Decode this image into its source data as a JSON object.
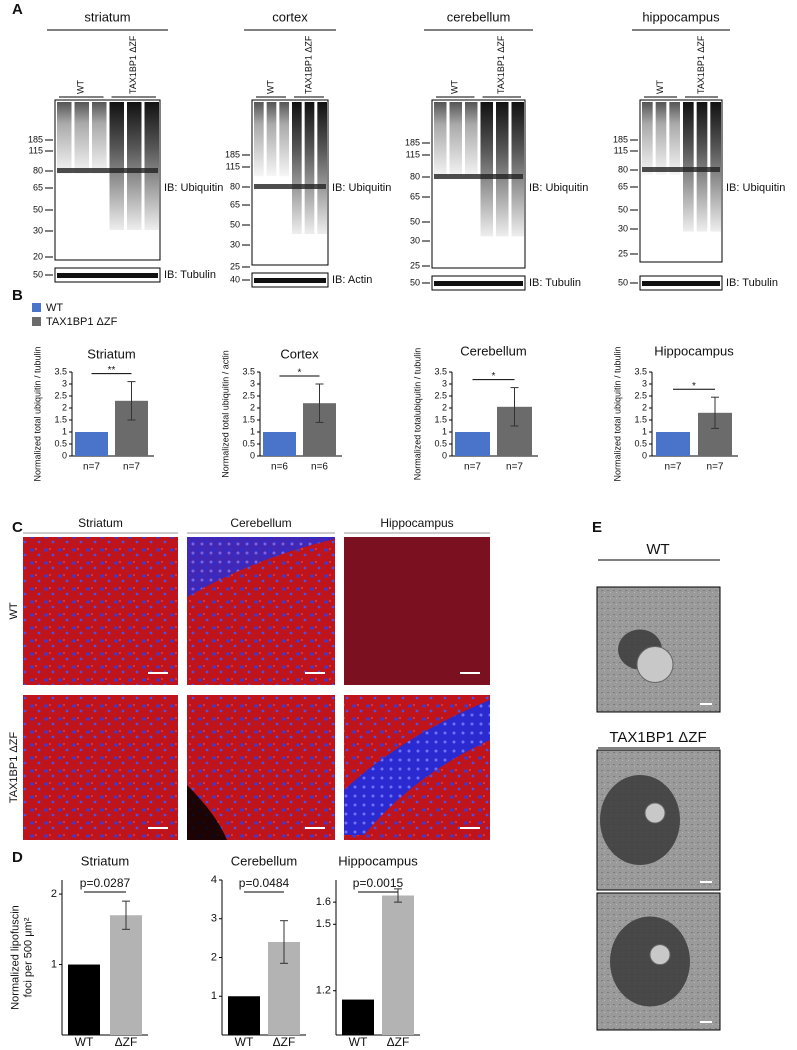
{
  "panel_labels": [
    "A",
    "B",
    "C",
    "D",
    "E"
  ],
  "blots": [
    {
      "tissue": "striatum",
      "lanes": [
        "WT",
        "TAX1BP1 ΔZF"
      ],
      "mw": [
        "185",
        "115",
        "80",
        "65",
        "50",
        "30",
        "20"
      ],
      "ib": "IB: Ubiquitin",
      "loading_mw": "50",
      "loading_ib": "IB: Tubulin"
    },
    {
      "tissue": "cortex",
      "lanes": [
        "WT",
        "TAX1BP1 ΔZF"
      ],
      "mw": [
        "185",
        "115",
        "80",
        "65",
        "50",
        "30",
        "25"
      ],
      "ib": "IB: Ubiquitin",
      "loading_mw": "40",
      "loading_ib": "IB: Actin"
    },
    {
      "tissue": "cerebellum",
      "lanes": [
        "WT",
        "TAX1BP1 ΔZF"
      ],
      "mw": [
        "185",
        "115",
        "80",
        "65",
        "50",
        "30",
        "25"
      ],
      "ib": "IB: Ubiquitin",
      "loading_mw": "50",
      "loading_ib": "IB: Tubulin"
    },
    {
      "tissue": "hippocampus",
      "lanes": [
        "WT",
        "TAX1BP1 ΔZF"
      ],
      "mw": [
        "185",
        "115",
        "80",
        "65",
        "50",
        "30",
        "25"
      ],
      "ib": "IB: Ubiquitin",
      "loading_mw": "50",
      "loading_ib": "IB: Tubulin"
    }
  ],
  "legend": [
    {
      "name": "WT",
      "color": "#4a74c9"
    },
    {
      "name": "TAX1BP1 ΔZF",
      "color": "#6b6b6b"
    }
  ],
  "chart_data": [
    {
      "type": "bar",
      "title": "Striatum",
      "ylabel": [
        "Normalized total ubiquitin / tubulin"
      ],
      "categories": [
        "n=7",
        "n=7"
      ],
      "values": [
        1,
        2.3
      ],
      "errors": [
        null,
        0.8
      ],
      "colors": [
        "#4a74c9",
        "#6b6b6b"
      ],
      "annotation": "**",
      "ylim": [
        0,
        3.5
      ],
      "yticks": [
        0,
        0.5,
        1,
        1.5,
        2,
        2.5,
        3,
        3.5
      ]
    },
    {
      "type": "bar",
      "title": "Cortex",
      "ylabel": [
        "Normalized total ubiquitin / actin"
      ],
      "categories": [
        "n=6",
        "n=6"
      ],
      "values": [
        1,
        2.2
      ],
      "errors": [
        null,
        0.8
      ],
      "colors": [
        "#4a74c9",
        "#6b6b6b"
      ],
      "annotation": "*",
      "ylim": [
        0,
        3.5
      ],
      "yticks": [
        0,
        0.5,
        1,
        1.5,
        2,
        2.5,
        3,
        3.5
      ]
    },
    {
      "type": "bar",
      "title": "Cerebellum",
      "ylabel": [
        "Normalized totalubiquitin / tubulin"
      ],
      "categories": [
        "n=7",
        "n=7"
      ],
      "values": [
        1,
        2.05
      ],
      "errors": [
        null,
        0.8
      ],
      "colors": [
        "#4a74c9",
        "#6b6b6b"
      ],
      "annotation": "*",
      "ylim": [
        0,
        3.5
      ],
      "yticks": [
        0,
        0.5,
        1,
        1.5,
        2,
        2.5,
        3,
        3.5
      ]
    },
    {
      "type": "bar",
      "title": "Hippocampus",
      "ylabel": [
        "Normalized total ubiquitin / tubulin"
      ],
      "categories": [
        "n=7",
        "n=7"
      ],
      "values": [
        1,
        1.8
      ],
      "errors": [
        null,
        0.65
      ],
      "colors": [
        "#4a74c9",
        "#6b6b6b"
      ],
      "annotation": "*",
      "ylim": [
        0,
        3.5
      ],
      "yticks": [
        0,
        0.5,
        1,
        1.5,
        2,
        2.5,
        3,
        3.5
      ]
    },
    {
      "type": "bar",
      "title": "Striatum",
      "ylabel": [
        "Normalized lipofuscin",
        "foci per 500 μm²"
      ],
      "categories": [
        "WT",
        "ΔZF"
      ],
      "values": [
        1,
        1.7
      ],
      "errors": [
        null,
        0.2
      ],
      "colors": [
        "#000000",
        "#b3b3b3"
      ],
      "annotation": "p=0.0287",
      "ylim": [
        0,
        2.2
      ],
      "yticks": [
        1,
        2
      ]
    },
    {
      "type": "bar",
      "title": "Cerebellum",
      "categories": [
        "WT",
        "ΔZF"
      ],
      "values": [
        1,
        2.4
      ],
      "errors": [
        null,
        0.55
      ],
      "colors": [
        "#000000",
        "#b3b3b3"
      ],
      "annotation": "p=0.0484",
      "ylim": [
        0,
        4
      ],
      "yticks": [
        1,
        2,
        3,
        4
      ]
    },
    {
      "type": "bar",
      "title": "Hippocampus",
      "categories": [
        "WT",
        "ΔZF"
      ],
      "values": [
        1.16,
        1.63
      ],
      "errors": [
        null,
        0.03
      ],
      "colors": [
        "#000000",
        "#b3b3b3"
      ],
      "annotation": "p=0.0015",
      "ylim": [
        1.0,
        1.7
      ],
      "yticks": [
        1.2,
        1.5,
        1.6
      ]
    }
  ],
  "microscopy": {
    "columns": [
      "Striatum",
      "Cerebellum",
      "Hippocampus"
    ],
    "rows": [
      "WT",
      "TAX1BP1 ΔZF"
    ]
  },
  "em": {
    "labels": [
      "WT",
      "TAX1BP1 ΔZF"
    ]
  }
}
